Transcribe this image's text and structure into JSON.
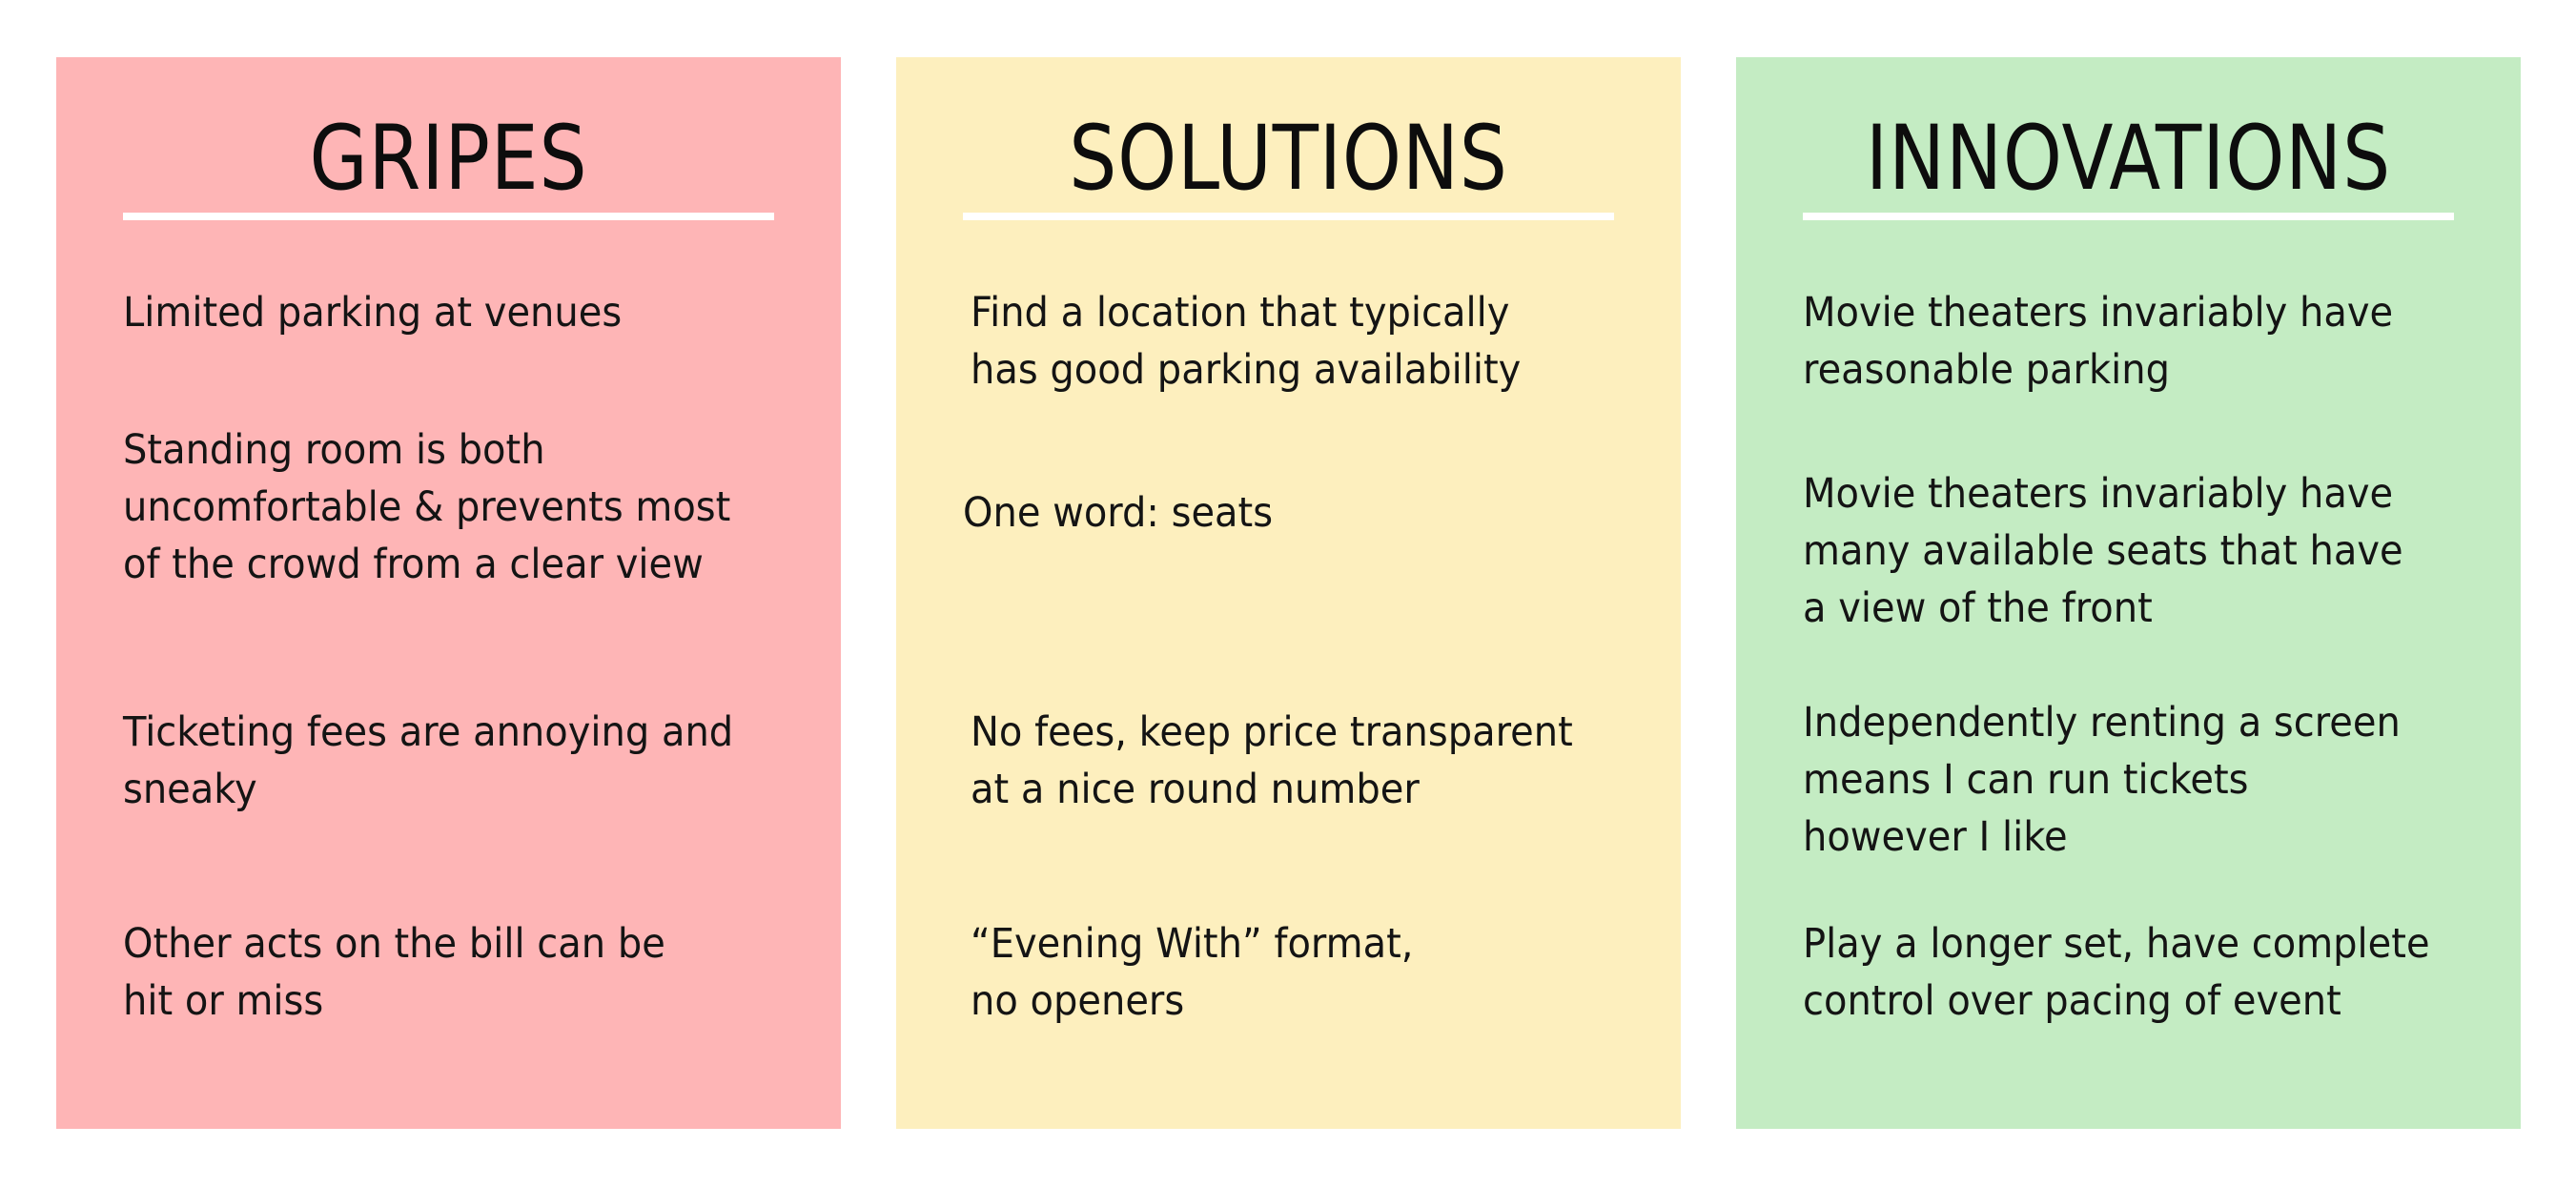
{
  "colors": {
    "background": "#ffffff",
    "gripes_panel": "#feb5b6",
    "solutions_panel": "#fdefbe",
    "innovations_panel": "#c4ecc3",
    "text": "#111111",
    "rule": "#ffffff"
  },
  "columns": [
    {
      "title": "GRIPES",
      "items": [
        "Limited parking at venues",
        "Standing room is both uncomfortable & prevents most of the crowd from a clear view",
        "Ticketing fees are annoying and sneaky",
        "Other acts on the bill can be hit or miss"
      ]
    },
    {
      "title": "SOLUTIONS",
      "items": [
        "Find a location that typically has good parking availability",
        "One word: seats",
        "No fees, keep price transparent at a nice round number",
        "“Evening With” format, no openers"
      ]
    },
    {
      "title": "INNOVATIONS",
      "items": [
        "Movie theaters invariably have reasonable parking",
        "Movie theaters invariably have many available seats that have a view of the front",
        "Independently renting a screen means I can run tickets however I like",
        "Play a longer set, have complete control over pacing of event"
      ]
    }
  ]
}
